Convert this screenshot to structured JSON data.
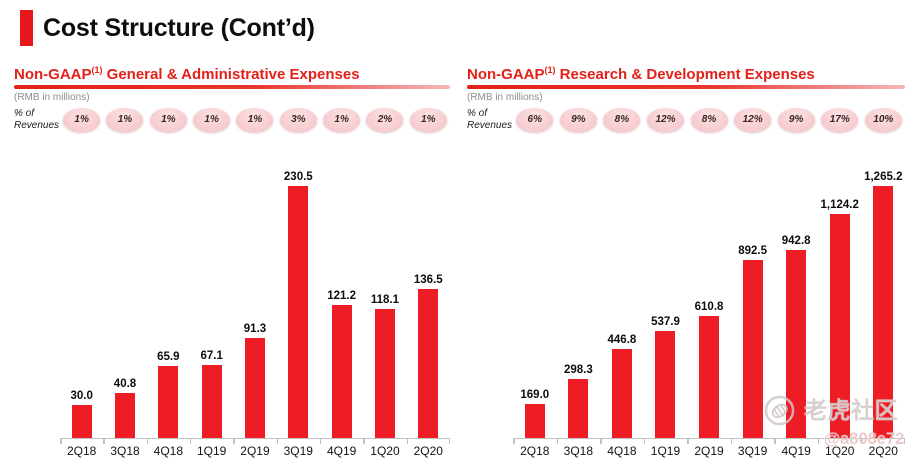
{
  "page": {
    "title": "Cost Structure (Cont’d)"
  },
  "colors": {
    "accent_red": "#E8151D",
    "header_red": "#E32119",
    "bar_red": "#EE1C25",
    "bubble_pink": "#F6C9CD",
    "units_gray": "#8C8C8C",
    "axis_gray": "#C2C2C2"
  },
  "watermark": {
    "brand": "老虎社区",
    "handle": "@a808e72",
    "icon": "tiger-logo"
  },
  "chart_data": [
    {
      "type": "bar",
      "header_prefix": "Non-GAAP",
      "header_sup": "(1)",
      "header_rest": " General & Administrative Expenses",
      "units": "(RMB in millions)",
      "pct_label": [
        "% of",
        "Revenues"
      ],
      "pct_of_revenues": [
        "1%",
        "1%",
        "1%",
        "1%",
        "1%",
        "3%",
        "1%",
        "2%",
        "1%"
      ],
      "categories": [
        "2Q18",
        "3Q18",
        "4Q18",
        "1Q19",
        "2Q19",
        "3Q19",
        "4Q19",
        "1Q20",
        "2Q20"
      ],
      "values": [
        30.0,
        40.8,
        65.9,
        67.1,
        91.3,
        230.5,
        121.2,
        118.1,
        136.5
      ],
      "value_labels": [
        "30.0",
        "40.8",
        "65.9",
        "67.1",
        "91.3",
        "230.5",
        "121.2",
        "118.1",
        "136.5"
      ],
      "bar_color": "#EE1C25",
      "grid": false,
      "y_axis_visible": false,
      "data_labels_position": "above-bars"
    },
    {
      "type": "bar",
      "header_prefix": "Non-GAAP",
      "header_sup": "(1)",
      "header_rest": " Research & Development Expenses",
      "units": "(RMB in millions)",
      "pct_label": [
        "% of",
        "Revenues"
      ],
      "pct_of_revenues": [
        "6%",
        "9%",
        "8%",
        "12%",
        "8%",
        "12%",
        "9%",
        "17%",
        "10%"
      ],
      "categories": [
        "2Q18",
        "3Q18",
        "4Q18",
        "1Q19",
        "2Q19",
        "3Q19",
        "4Q19",
        "1Q20",
        "2Q20"
      ],
      "values": [
        169.0,
        298.3,
        446.8,
        537.9,
        610.8,
        892.5,
        942.8,
        1124.2,
        1265.2
      ],
      "value_labels": [
        "169.0",
        "298.3",
        "446.8",
        "537.9",
        "610.8",
        "892.5",
        "942.8",
        "1,124.2",
        "1,265.2"
      ],
      "bar_color": "#EE1C25",
      "grid": false,
      "y_axis_visible": false,
      "data_labels_position": "above-bars"
    }
  ]
}
